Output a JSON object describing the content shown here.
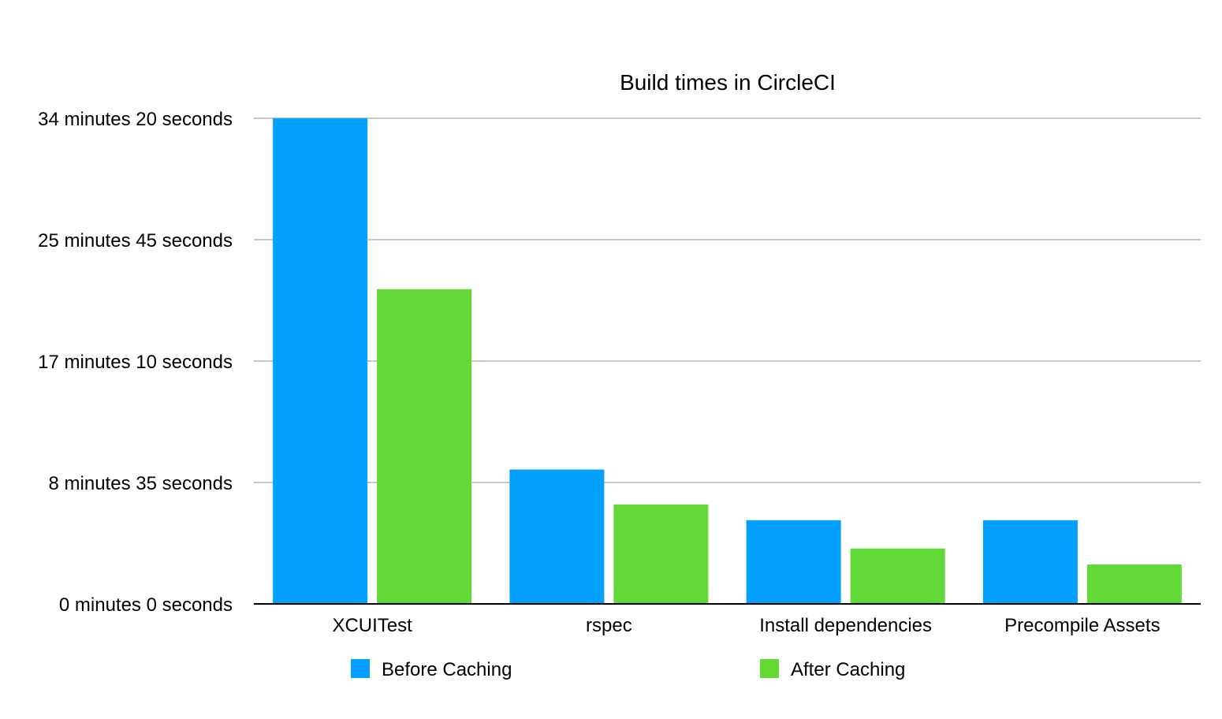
{
  "chart_data": {
    "type": "bar",
    "title": "Build times in CircleCI",
    "xlabel": "",
    "ylabel": "",
    "categories": [
      "XCUITest",
      "rspec",
      "Install dependencies",
      "Precompile Assets"
    ],
    "series": [
      {
        "name": "Before Caching",
        "color": "#03a1fc",
        "values": [
          2060,
          570,
          355,
          355
        ]
      },
      {
        "name": "After Caching",
        "color": "#63d938",
        "values": [
          1335,
          422,
          235,
          167
        ]
      }
    ],
    "value_unit": "seconds",
    "ylim": [
      0,
      2060
    ],
    "yticks": [
      {
        "value": 0,
        "label": "0 minutes 0 seconds"
      },
      {
        "value": 515,
        "label": "8 minutes 35 seconds"
      },
      {
        "value": 1030,
        "label": "17 minutes 10 seconds"
      },
      {
        "value": 1545,
        "label": "25 minutes 45 seconds"
      },
      {
        "value": 2060,
        "label": "34 minutes 20 seconds"
      }
    ],
    "grid": true,
    "legend_position": "bottom"
  }
}
